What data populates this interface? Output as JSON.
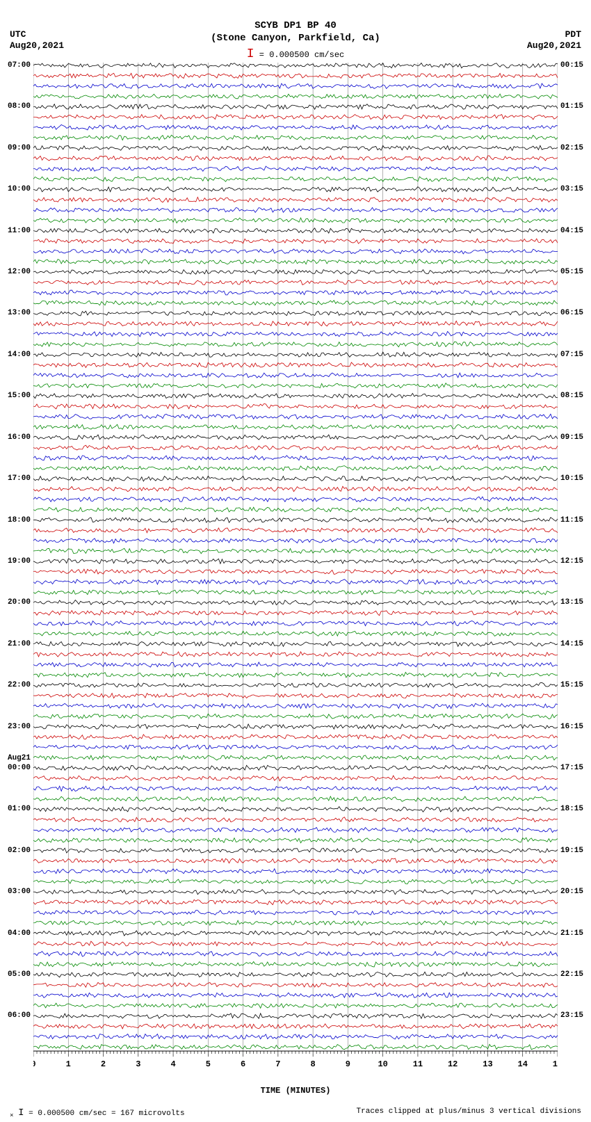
{
  "title_line1": "SCYB DP1 BP 40",
  "title_line2": "(Stone Canyon, Parkfield, Ca)",
  "scale_text": "= 0.000500 cm/sec",
  "tz_left": "UTC",
  "tz_right": "PDT",
  "date_left": "Aug20,2021",
  "date_right": "Aug20,2021",
  "x_axis_label": "TIME (MINUTES)",
  "footer_left": "= 0.000500 cm/sec =    167 microvolts",
  "footer_right": "Traces clipped at plus/minus 3 vertical divisions",
  "day_break_label": "Aug21",
  "chart": {
    "type": "seismogram",
    "background_color": "#ffffff",
    "grid_color": "#808080",
    "trace_colors": [
      "#000000",
      "#cc0000",
      "#0000cc",
      "#008800"
    ],
    "x_min": 0,
    "x_max": 15,
    "x_tick_major": 1,
    "x_tick_minor": 0.1,
    "n_hours": 24,
    "lines_per_hour": 4,
    "noise_amplitude": 0.35,
    "line_width": 0.8,
    "left_hour_labels": [
      "07:00",
      "08:00",
      "09:00",
      "10:00",
      "11:00",
      "12:00",
      "13:00",
      "14:00",
      "15:00",
      "16:00",
      "17:00",
      "18:00",
      "19:00",
      "20:00",
      "21:00",
      "22:00",
      "23:00",
      "00:00",
      "01:00",
      "02:00",
      "03:00",
      "04:00",
      "05:00",
      "06:00"
    ],
    "right_hour_labels": [
      "00:15",
      "01:15",
      "02:15",
      "03:15",
      "04:15",
      "05:15",
      "06:15",
      "07:15",
      "08:15",
      "09:15",
      "10:15",
      "11:15",
      "12:15",
      "13:15",
      "14:15",
      "15:15",
      "16:15",
      "17:15",
      "18:15",
      "19:15",
      "20:15",
      "21:15",
      "22:15",
      "23:15"
    ],
    "day_break_index": 17
  }
}
